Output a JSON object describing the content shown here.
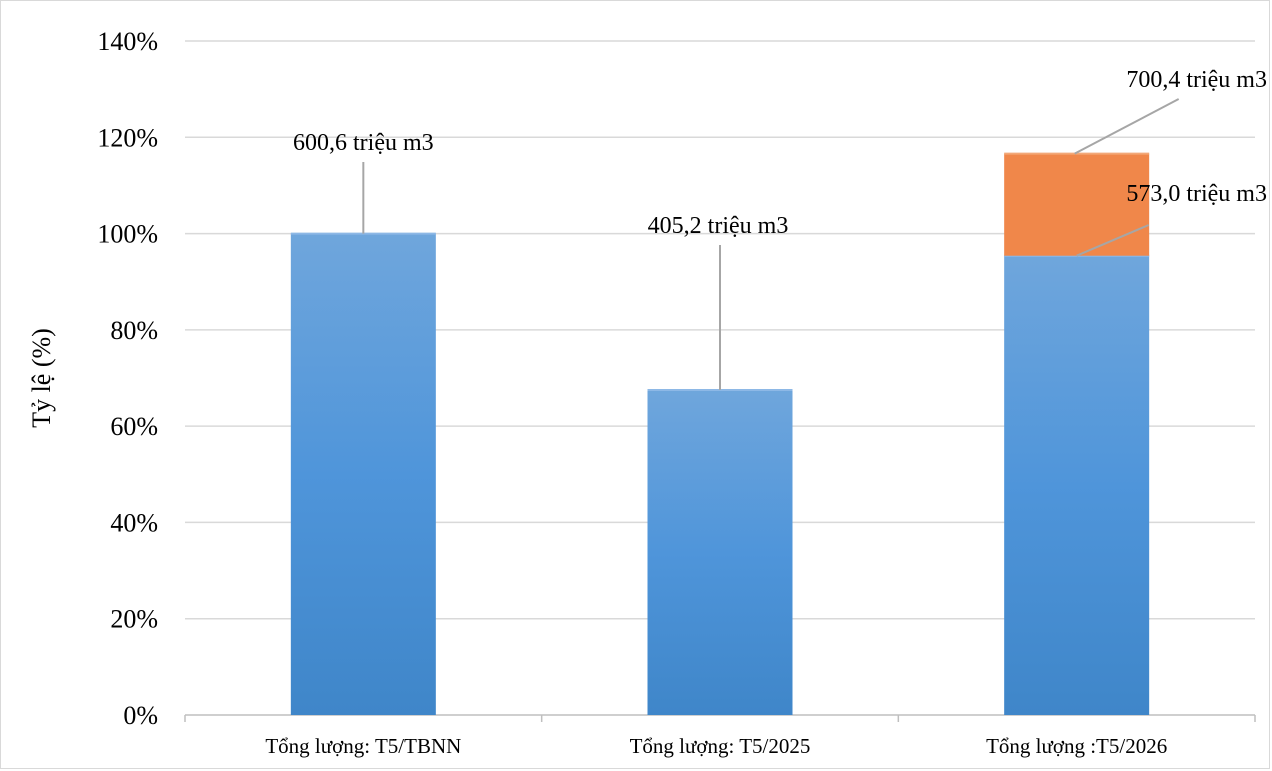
{
  "chart_data": {
    "type": "bar",
    "stacked": true,
    "ylabel": "Tỷ lệ (%)",
    "ylim": [
      0,
      140
    ],
    "yticks": [
      "0%",
      "20%",
      "40%",
      "60%",
      "80%",
      "100%",
      "120%",
      "140%"
    ],
    "ytick_values": [
      0,
      20,
      40,
      60,
      80,
      100,
      120,
      140
    ],
    "grid": true,
    "categories": [
      "Tổng lượng: T5/TBNN",
      "Tổng lượng: T5/2025",
      "Tổng lượng :T5/2026"
    ],
    "series": [
      {
        "values": [
          100,
          67.5,
          95.4
        ],
        "color": "#4a8fd6"
      },
      {
        "values": [
          0,
          0,
          21.2
        ],
        "color": "#f0874a"
      }
    ],
    "annotations": [
      {
        "text": "600,6  triệu m3",
        "category_index": 0,
        "value": 100
      },
      {
        "text": "405,2 triệu m3",
        "category_index": 1,
        "value": 67.5
      },
      {
        "text": "573,0 triệu m3",
        "category_index": 2,
        "value": 95.4
      },
      {
        "text": "700,4 triệu m3",
        "category_index": 2,
        "value": 116.6
      }
    ]
  }
}
